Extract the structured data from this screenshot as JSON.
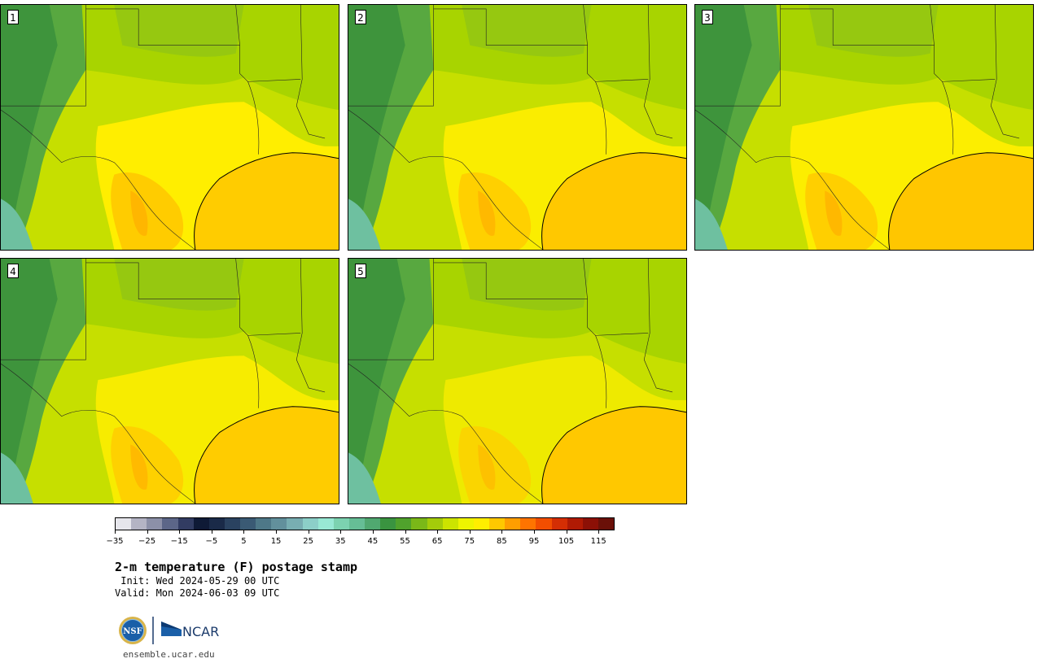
{
  "panels": [
    {
      "label": "1"
    },
    {
      "label": "2"
    },
    {
      "label": "3"
    },
    {
      "label": "4"
    },
    {
      "label": "5"
    }
  ],
  "colorbar": {
    "colors": [
      "#e6e6ec",
      "#b4b4c4",
      "#8c90a8",
      "#5c6688",
      "#323c62",
      "#0f1a36",
      "#1a2a48",
      "#2a4260",
      "#3a5a74",
      "#4e7888",
      "#62909c",
      "#78aeb2",
      "#8ccfc8",
      "#98e8d4",
      "#7cd2b0",
      "#66be96",
      "#50a870",
      "#3a9440",
      "#50a22c",
      "#7ab818",
      "#a4cc0a",
      "#cce400",
      "#eef400",
      "#ffee00",
      "#ffc800",
      "#ff9e00",
      "#ff7400",
      "#f24e00",
      "#d42e04",
      "#b01a04",
      "#8c1006",
      "#6a1008"
    ],
    "tick_values": [
      "−35",
      "−25",
      "−15",
      "−5",
      "5",
      "15",
      "25",
      "35",
      "45",
      "55",
      "65",
      "75",
      "85",
      "95",
      "105",
      "115"
    ],
    "vmin": -35,
    "vmax": 120,
    "units": "F"
  },
  "title": "2-m temperature (F) postage stamp",
  "init": " Init: Wed 2024-05-29 00 UTC",
  "valid": "Valid: Mon 2024-06-03 09 UTC",
  "logos": [
    "nsf-logo",
    "ncar-logo"
  ],
  "ncar_text": "NCAR",
  "nsf_text": "NSF",
  "url": "ensemble.ucar.edu"
}
